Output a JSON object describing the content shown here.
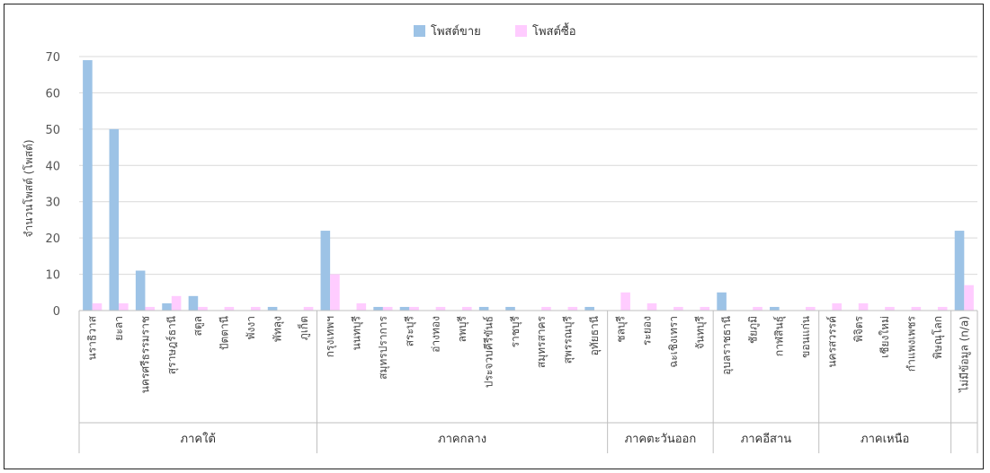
{
  "colors": {
    "sell": "#9dc3e6",
    "buy": "#ffccff",
    "grid": "#d9d9d9",
    "axis": "#bfbfbf"
  },
  "chart_data": {
    "type": "bar",
    "title": "",
    "ylabel": "จำนวนโพสต์ (โพสต์)",
    "xlabel": "",
    "ylim": [
      0,
      70
    ],
    "yticks": [
      0,
      10,
      20,
      30,
      40,
      50,
      60,
      70
    ],
    "grid": true,
    "legend_position": "top-center",
    "categories": [
      "นราธิวาส",
      "ยะลา",
      "นครศรีธรรมราช",
      "สุราษฎร์ธานี",
      "สตูล",
      "ปัตตานี",
      "พังงา",
      "พัทลุง",
      "ภูเก็ต",
      "กรุงเทพฯ",
      "นนทบุรี",
      "สมุทรปราการ",
      "สระบุรี",
      "อ่างทอง",
      "ลพบุรี",
      "ประจวบคีรีขันธ์",
      "ราชบุรี",
      "สมุทรสาคร",
      "สุพรรณบุรี",
      "อุทัยธานี",
      "ชลบุรี",
      "ระยอง",
      "ฉะเชิงเทรา",
      "จันทบุรี",
      "อุบลราชธานี",
      "ชัยภูมิ",
      "กาฬสินธุ์",
      "ขอนแก่น",
      "นครสวรรค์",
      "พิจิตร",
      "เชียงใหม่",
      "กำแพงเพชร",
      "พิษณุโลก",
      "ไม่มีข้อมูล (n/a)"
    ],
    "groups": [
      {
        "name": "ภาคใต้",
        "start": 0,
        "end": 8
      },
      {
        "name": "ภาคกลาง",
        "start": 9,
        "end": 19
      },
      {
        "name": "ภาคตะวันออก",
        "start": 20,
        "end": 23
      },
      {
        "name": "ภาคอีสาน",
        "start": 24,
        "end": 27
      },
      {
        "name": "ภาคเหนือ",
        "start": 28,
        "end": 32
      },
      {
        "name": "",
        "start": 33,
        "end": 33
      }
    ],
    "series": [
      {
        "name": "โพสต์ขาย",
        "values": [
          69,
          50,
          11,
          2,
          4,
          0,
          0,
          1,
          0,
          22,
          0,
          1,
          1,
          0,
          0,
          1,
          1,
          0,
          0,
          1,
          0,
          0,
          0,
          0,
          5,
          0,
          1,
          0,
          0,
          0,
          0,
          0,
          0,
          22
        ]
      },
      {
        "name": "โพสต์ซื้อ",
        "values": [
          2,
          2,
          1,
          4,
          1,
          1,
          1,
          0,
          1,
          10,
          2,
          1,
          1,
          1,
          1,
          0,
          0,
          1,
          1,
          0,
          5,
          2,
          1,
          1,
          0,
          1,
          0,
          1,
          2,
          2,
          1,
          1,
          1,
          7
        ]
      }
    ]
  }
}
